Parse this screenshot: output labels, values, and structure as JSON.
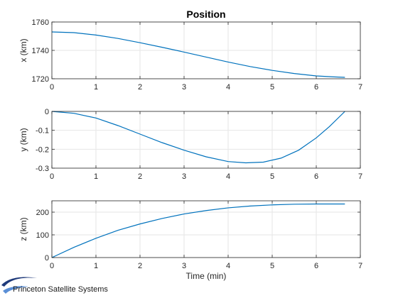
{
  "colors": {
    "line": "#0072BD",
    "axis": "#262626",
    "grid": "#e6e6e6",
    "logo_dark": "#1f3a7a",
    "logo_light": "#5a8fd6"
  },
  "brand": {
    "name": "Princeton Satellite Systems",
    "logo_icon": "swoosh-logo-icon"
  },
  "chart_data": [
    {
      "type": "line",
      "title": "Position",
      "xlabel": "",
      "ylabel": "x (km)",
      "xlim": [
        0,
        7
      ],
      "ylim": [
        1720,
        1760
      ],
      "xticks": [
        0,
        1,
        2,
        3,
        4,
        5,
        6,
        7
      ],
      "yticks": [
        1720,
        1740,
        1760
      ],
      "grid": true,
      "series": [
        {
          "x": [
            0,
            0.5,
            1,
            1.5,
            2,
            2.5,
            3,
            3.5,
            4,
            4.5,
            5,
            5.5,
            6,
            6.4,
            6.65
          ],
          "y": [
            1753.0,
            1752.5,
            1750.8,
            1748.4,
            1745.4,
            1742.2,
            1738.8,
            1735.3,
            1731.8,
            1728.6,
            1725.9,
            1723.7,
            1722.0,
            1721.3,
            1721.0
          ]
        }
      ]
    },
    {
      "type": "line",
      "title": "",
      "xlabel": "",
      "ylabel": "y (km)",
      "xlim": [
        0,
        7
      ],
      "ylim": [
        -0.3,
        0
      ],
      "xticks": [
        0,
        1,
        2,
        3,
        4,
        5,
        6,
        7
      ],
      "yticks": [
        -0.3,
        -0.2,
        -0.1,
        0
      ],
      "ytick_labels": [
        "-0.3",
        "-0.2",
        "-0.1",
        "0"
      ],
      "grid": true,
      "series": [
        {
          "x": [
            0,
            0.5,
            1,
            1.5,
            2,
            2.5,
            3,
            3.5,
            4,
            4.4,
            4.8,
            5.2,
            5.6,
            6.0,
            6.3,
            6.65
          ],
          "y": [
            0,
            -0.01,
            -0.035,
            -0.075,
            -0.12,
            -0.165,
            -0.205,
            -0.24,
            -0.265,
            -0.272,
            -0.268,
            -0.247,
            -0.205,
            -0.14,
            -0.08,
            0
          ]
        }
      ]
    },
    {
      "type": "line",
      "title": "",
      "xlabel": "Time (min)",
      "ylabel": "z (km)",
      "xlim": [
        0,
        7
      ],
      "ylim": [
        0,
        250
      ],
      "xticks": [
        0,
        1,
        2,
        3,
        4,
        5,
        6,
        7
      ],
      "yticks": [
        0,
        100,
        200
      ],
      "grid": true,
      "series": [
        {
          "x": [
            0,
            0.5,
            1,
            1.5,
            2,
            2.5,
            3,
            3.5,
            4,
            4.5,
            5,
            5.5,
            6,
            6.65
          ],
          "y": [
            0,
            45,
            85,
            120,
            148,
            172,
            192,
            207,
            219,
            227,
            232,
            235,
            236,
            236
          ]
        }
      ]
    }
  ]
}
